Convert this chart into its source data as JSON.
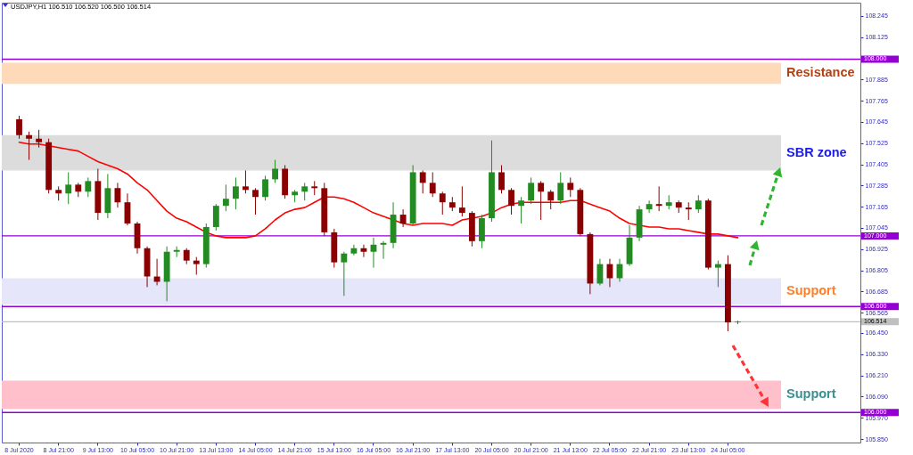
{
  "chart_data": {
    "type": "candlestick",
    "title": "USDJPY,H1 106.510 106.520 106.500 106.514",
    "categories": [
      "8 Jul 2020",
      null,
      null,
      null,
      "8 Jul 21:00",
      null,
      null,
      null,
      "9 Jul 13:00",
      null,
      null,
      null,
      "10 Jul 05:00",
      null,
      null,
      null,
      "10 Jul 21:00",
      null,
      null,
      null,
      "13 Jul 13:00",
      null,
      null,
      null,
      "14 Jul 05:00",
      null,
      null,
      null,
      "14 Jul 21:00",
      null,
      null,
      null,
      "15 Jul 13:00",
      null,
      null,
      null,
      "16 Jul 05:00",
      null,
      null,
      null,
      "16 Jul 21:00",
      null,
      null,
      null,
      "17 Jul 13:00",
      null,
      null,
      null,
      "20 Jul 05:00",
      null,
      null,
      null,
      "20 Jul 21:00",
      null,
      null,
      null,
      "21 Jul 13:00",
      null,
      null,
      null,
      "22 Jul 05:00",
      null,
      null,
      null,
      "22 Jul 21:00",
      null,
      null,
      null,
      "23 Jul 13:00",
      null,
      null,
      null,
      "24 Jul 05:00",
      null
    ],
    "ohlc": [
      [
        107.66,
        107.68,
        107.55,
        107.57
      ],
      [
        107.57,
        107.59,
        107.43,
        107.55
      ],
      [
        107.55,
        107.6,
        107.5,
        107.53
      ],
      [
        107.53,
        107.55,
        107.24,
        107.26
      ],
      [
        107.26,
        107.28,
        107.2,
        107.24
      ],
      [
        107.24,
        107.36,
        107.18,
        107.29
      ],
      [
        107.29,
        107.3,
        107.22,
        107.25
      ],
      [
        107.25,
        107.33,
        107.22,
        107.31
      ],
      [
        107.31,
        107.38,
        107.09,
        107.13
      ],
      [
        107.13,
        107.35,
        107.1,
        107.27
      ],
      [
        107.27,
        107.3,
        107.16,
        107.19
      ],
      [
        107.19,
        107.24,
        107.06,
        107.07
      ],
      [
        107.07,
        107.08,
        106.9,
        106.93
      ],
      [
        106.93,
        106.94,
        106.71,
        106.77
      ],
      [
        106.77,
        106.87,
        106.72,
        106.74
      ],
      [
        106.74,
        106.94,
        106.63,
        106.91
      ],
      [
        106.91,
        106.94,
        106.88,
        106.92
      ],
      [
        106.92,
        106.93,
        106.84,
        106.86
      ],
      [
        106.86,
        106.88,
        106.78,
        106.84
      ],
      [
        106.84,
        107.07,
        106.82,
        107.05
      ],
      [
        107.05,
        107.18,
        107.03,
        107.17
      ],
      [
        107.17,
        107.29,
        107.14,
        107.21
      ],
      [
        107.21,
        107.33,
        107.15,
        107.28
      ],
      [
        107.28,
        107.37,
        107.24,
        107.26
      ],
      [
        107.26,
        107.27,
        107.12,
        107.22
      ],
      [
        107.22,
        107.34,
        107.2,
        107.32
      ],
      [
        107.32,
        107.43,
        107.3,
        107.38
      ],
      [
        107.38,
        107.4,
        107.21,
        107.23
      ],
      [
        107.23,
        107.26,
        107.19,
        107.25
      ],
      [
        107.25,
        107.3,
        107.2,
        107.28
      ],
      [
        107.28,
        107.31,
        107.23,
        107.27
      ],
      [
        107.27,
        107.3,
        107.0,
        107.02
      ],
      [
        107.02,
        107.04,
        106.82,
        106.85
      ],
      [
        106.85,
        106.91,
        106.66,
        106.9
      ],
      [
        106.9,
        106.95,
        106.89,
        106.93
      ],
      [
        106.93,
        106.95,
        106.88,
        106.91
      ],
      [
        106.91,
        106.99,
        106.82,
        106.95
      ],
      [
        106.95,
        106.97,
        106.87,
        106.96
      ],
      [
        106.96,
        107.19,
        106.93,
        107.12
      ],
      [
        107.12,
        107.15,
        107.05,
        107.07
      ],
      [
        107.07,
        107.4,
        107.06,
        107.36
      ],
      [
        107.36,
        107.37,
        107.24,
        107.3
      ],
      [
        107.3,
        107.36,
        107.22,
        107.24
      ],
      [
        107.24,
        107.25,
        107.12,
        107.19
      ],
      [
        107.19,
        107.22,
        107.14,
        107.16
      ],
      [
        107.16,
        107.28,
        107.11,
        107.13
      ],
      [
        107.13,
        107.14,
        106.94,
        106.97
      ],
      [
        106.97,
        107.12,
        106.93,
        107.1
      ],
      [
        107.1,
        107.54,
        107.08,
        107.36
      ],
      [
        107.36,
        107.4,
        107.24,
        107.26
      ],
      [
        107.26,
        107.27,
        107.12,
        107.17
      ],
      [
        107.17,
        107.22,
        107.07,
        107.2
      ],
      [
        107.2,
        107.33,
        107.18,
        107.3
      ],
      [
        107.3,
        107.31,
        107.09,
        107.25
      ],
      [
        107.25,
        107.26,
        107.15,
        107.2
      ],
      [
        107.2,
        107.36,
        107.18,
        107.3
      ],
      [
        107.3,
        107.33,
        107.22,
        107.26
      ],
      [
        107.26,
        107.27,
        107.0,
        107.01
      ],
      [
        107.01,
        107.02,
        106.67,
        106.73
      ],
      [
        106.73,
        106.87,
        106.72,
        106.84
      ],
      [
        106.84,
        106.87,
        106.71,
        106.76
      ],
      [
        106.76,
        106.87,
        106.74,
        106.84
      ],
      [
        106.84,
        107.06,
        106.83,
        106.99
      ],
      [
        106.99,
        107.17,
        106.97,
        107.15
      ],
      [
        107.15,
        107.2,
        107.13,
        107.18
      ],
      [
        107.18,
        107.28,
        107.14,
        107.17
      ],
      [
        107.17,
        107.23,
        107.15,
        107.19
      ],
      [
        107.19,
        107.2,
        107.13,
        107.16
      ],
      [
        107.16,
        107.19,
        107.09,
        107.15
      ],
      [
        107.15,
        107.23,
        107.13,
        107.2
      ],
      [
        107.2,
        107.21,
        106.81,
        106.82
      ],
      [
        106.82,
        106.86,
        106.71,
        106.84
      ],
      [
        106.84,
        106.89,
        106.46,
        106.51
      ],
      [
        106.51,
        106.52,
        106.5,
        106.514
      ]
    ],
    "colors": [
      "#8b0000",
      "#8b0000",
      "#8b0000",
      "#8b0000",
      "#8b0000",
      "#228b22",
      "#8b0000",
      "#228b22",
      "#8b0000",
      "#228b22",
      "#8b0000",
      "#8b0000",
      "#8b0000",
      "#8b0000",
      "#8b0000",
      "#228b22",
      "#228b22",
      "#8b0000",
      "#8b0000",
      "#228b22",
      "#228b22",
      "#228b22",
      "#228b22",
      "#8b0000",
      "#8b0000",
      "#228b22",
      "#228b22",
      "#8b0000",
      "#228b22",
      "#228b22",
      "#8b0000",
      "#8b0000",
      "#8b0000",
      "#228b22",
      "#228b22",
      "#8b0000",
      "#228b22",
      "#228b22",
      "#228b22",
      "#8b0000",
      "#228b22",
      "#8b0000",
      "#8b0000",
      "#8b0000",
      "#8b0000",
      "#8b0000",
      "#8b0000",
      "#228b22",
      "#228b22",
      "#8b0000",
      "#8b0000",
      "#228b22",
      "#228b22",
      "#8b0000",
      "#8b0000",
      "#228b22",
      "#8b0000",
      "#8b0000",
      "#8b0000",
      "#228b22",
      "#8b0000",
      "#228b22",
      "#228b22",
      "#228b22",
      "#228b22",
      "#8b0000",
      "#228b22",
      "#8b0000",
      "#8b0000",
      "#228b22",
      "#8b0000",
      "#228b22",
      "#8b0000",
      "#228b22"
    ],
    "series": [
      {
        "type": "line",
        "color": "#ff0000",
        "values": [
          107.53,
          107.52,
          107.52,
          107.51,
          107.5,
          107.49,
          107.48,
          107.45,
          107.42,
          107.4,
          107.38,
          107.35,
          107.3,
          107.26,
          107.2,
          107.14,
          107.1,
          107.08,
          107.05,
          107.02,
          107.0,
          106.99,
          106.99,
          106.99,
          107.0,
          107.04,
          107.09,
          107.13,
          107.15,
          107.16,
          107.19,
          107.22,
          107.22,
          107.21,
          107.19,
          107.16,
          107.13,
          107.11,
          107.09,
          107.07,
          107.06,
          107.07,
          107.07,
          107.07,
          107.06,
          107.09,
          107.1,
          107.11,
          107.13,
          107.16,
          107.18,
          107.19,
          107.19,
          107.19,
          107.19,
          107.19,
          107.2,
          107.2,
          107.18,
          107.16,
          107.14,
          107.1,
          107.07,
          107.06,
          107.05,
          107.05,
          107.04,
          107.04,
          107.03,
          107.02,
          107.01,
          107.01,
          107.0,
          106.99
        ]
      }
    ],
    "ylim": [
      105.83,
      108.32
    ],
    "yticks": [
      108.245,
      108.125,
      107.885,
      107.765,
      107.645,
      107.525,
      107.405,
      107.285,
      107.165,
      107.045,
      106.925,
      106.805,
      106.685,
      106.565,
      {
        "value": 106.45,
        "label": "106.450"
      },
      {
        "value": 106.33,
        "label": "106.330"
      },
      {
        "value": 106.21,
        "label": "106.210"
      },
      {
        "value": 106.09,
        "label": "106.090"
      },
      {
        "value": 105.97,
        "label": "105.970"
      },
      {
        "value": 105.85,
        "label": "105.850"
      }
    ],
    "ref_lines": [
      {
        "axis": "y",
        "value": 108,
        "label": "108.000",
        "color": "#9400d3"
      },
      {
        "axis": "y",
        "value": 107,
        "label": "107.000",
        "color": "#9400d3"
      },
      {
        "axis": "y",
        "value": 106.6,
        "label": "106.600",
        "color": "#9400d3"
      },
      {
        "axis": "y",
        "value": 106,
        "label": "106.000",
        "color": "#9400d3"
      },
      {
        "axis": "y",
        "value": 106.514,
        "label": "106.514",
        "color": "#c0c0c0"
      }
    ],
    "bands": [
      {
        "axis": "y",
        "from": 107.86,
        "to": 107.98,
        "label": "Resistance",
        "color": "#ffdab9"
      },
      {
        "axis": "y",
        "from": 107.37,
        "to": 107.57,
        "label": "SBR zone",
        "color": "#dcdcdc"
      },
      {
        "axis": "y",
        "from": 106.61,
        "to": 106.76,
        "label": "Support",
        "color": "#e6e6fa"
      },
      {
        "axis": "y",
        "from": 106.02,
        "to": 106.18,
        "label": "Support",
        "color": "#ffc0cb"
      }
    ]
  }
}
